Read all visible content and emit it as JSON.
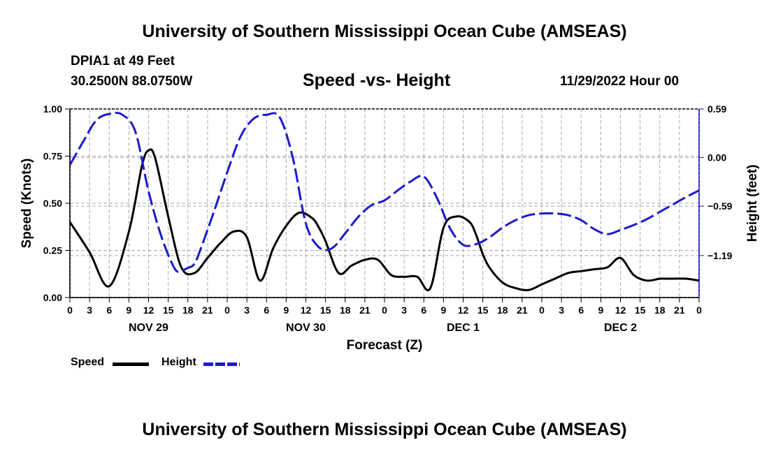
{
  "header": {
    "title": "University of Southern Mississippi Ocean Cube (AMSEAS)",
    "station": "DPIA1 at 49 Feet",
    "coords": "30.2500N  88.0750W",
    "plot_title": "Speed -vs- Height",
    "datetime": "11/29/2022 Hour 00",
    "footer_title": "University of Southern Mississippi Ocean Cube (AMSEAS)"
  },
  "legend": {
    "speed_label": "Speed",
    "height_label": "Height"
  },
  "colors": {
    "speed": "#000000",
    "height": "#1a1acc",
    "grid": "#aaaaaa"
  },
  "chart_data": {
    "type": "line",
    "title": "Speed -vs- Height",
    "xlabel": "Forecast (Z)",
    "ylabel": "Speed (Knots)",
    "y2label": "Height (feet)",
    "x_range": [
      0,
      96
    ],
    "ylim": [
      0,
      1.0
    ],
    "y2lim": [
      -1.7,
      0.59
    ],
    "x_ticks": [
      0,
      3,
      6,
      9,
      12,
      15,
      18,
      21,
      24,
      27,
      30,
      33,
      36,
      39,
      42,
      45,
      48,
      51,
      54,
      57,
      60,
      63,
      66,
      69,
      72,
      75,
      78,
      81,
      84,
      87,
      90,
      93,
      96
    ],
    "x_tick_labels": [
      "0",
      "3",
      "6",
      "9",
      "12",
      "15",
      "18",
      "21",
      "0",
      "3",
      "6",
      "9",
      "12",
      "15",
      "18",
      "21",
      "0",
      "3",
      "6",
      "9",
      "12",
      "15",
      "18",
      "21",
      "0",
      "3",
      "6",
      "9",
      "12",
      "15",
      "18",
      "21",
      "0"
    ],
    "day_labels": [
      {
        "x": 12,
        "label": "NOV 29"
      },
      {
        "x": 36,
        "label": "NOV 30"
      },
      {
        "x": 60,
        "label": "DEC 1"
      },
      {
        "x": 84,
        "label": "DEC 2"
      }
    ],
    "y_ticks": [
      0,
      0.25,
      0.5,
      0.75,
      1.0
    ],
    "y_tick_labels": [
      "0.00",
      "0.25",
      "0.50",
      "0.75",
      "1.00"
    ],
    "y2_ticks": [
      0.59,
      0.0,
      -0.59,
      -1.19
    ],
    "y2_tick_labels": [
      "0.59",
      "0.00",
      "−0.59",
      "−1.19"
    ],
    "series": [
      {
        "name": "Speed",
        "axis": "left",
        "style": "solid",
        "x": [
          0,
          3,
          6,
          9,
          11,
          12,
          13,
          15,
          17,
          19,
          21,
          23,
          25,
          27,
          29,
          31,
          33,
          35,
          37,
          38,
          39,
          41,
          43,
          45,
          47,
          49,
          51,
          53,
          55,
          57,
          59,
          61,
          62,
          63,
          64,
          66,
          68,
          70,
          72,
          74,
          76,
          78,
          80,
          82,
          84,
          86,
          88,
          90,
          91,
          92,
          94,
          96
        ],
        "values": [
          0.4,
          0.24,
          0.06,
          0.35,
          0.7,
          0.78,
          0.74,
          0.43,
          0.16,
          0.13,
          0.21,
          0.29,
          0.35,
          0.32,
          0.09,
          0.26,
          0.38,
          0.45,
          0.42,
          0.37,
          0.3,
          0.13,
          0.17,
          0.2,
          0.2,
          0.12,
          0.11,
          0.11,
          0.05,
          0.37,
          0.43,
          0.4,
          0.33,
          0.23,
          0.16,
          0.08,
          0.05,
          0.04,
          0.07,
          0.1,
          0.13,
          0.14,
          0.15,
          0.16,
          0.21,
          0.12,
          0.09,
          0.1,
          0.1,
          0.1,
          0.1,
          0.09
        ]
      },
      {
        "name": "Height",
        "axis": "right",
        "style": "dashed",
        "x": [
          0,
          2,
          4,
          6,
          8,
          10,
          12,
          14,
          16,
          17,
          18,
          19,
          20,
          22,
          24,
          26,
          28,
          30,
          32,
          34,
          36,
          38,
          40,
          42,
          44,
          46,
          48,
          50,
          52,
          54,
          56,
          58,
          60,
          62,
          64,
          66,
          68,
          70,
          72,
          74,
          76,
          78,
          80,
          82,
          84,
          86,
          88,
          90,
          92,
          94,
          96
        ],
        "values": [
          -0.09,
          0.19,
          0.45,
          0.53,
          0.52,
          0.31,
          -0.41,
          -0.97,
          -1.35,
          -1.37,
          -1.34,
          -1.29,
          -1.1,
          -0.65,
          -0.18,
          0.25,
          0.47,
          0.52,
          0.49,
          0.0,
          -0.8,
          -1.09,
          -1.1,
          -0.92,
          -0.72,
          -0.58,
          -0.52,
          -0.4,
          -0.29,
          -0.23,
          -0.49,
          -0.86,
          -1.06,
          -1.05,
          -0.97,
          -0.85,
          -0.76,
          -0.7,
          -0.68,
          -0.68,
          -0.7,
          -0.76,
          -0.87,
          -0.93,
          -0.88,
          -0.82,
          -0.75,
          -0.66,
          -0.57,
          -0.48,
          -0.4
        ]
      }
    ]
  }
}
